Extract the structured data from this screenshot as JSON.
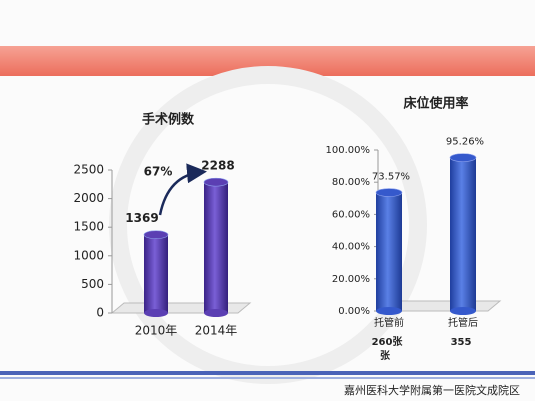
{
  "chart_data": [
    {
      "type": "bar",
      "title": "手术例数",
      "categories": [
        "2010年",
        "2014年"
      ],
      "values": [
        1369,
        2288
      ],
      "value_labels": [
        "1369",
        "2288"
      ],
      "color": "#5b3fb3",
      "ylim": [
        0,
        2500
      ],
      "yticks": [
        0,
        500,
        1000,
        1500,
        2000,
        2500
      ],
      "annotations": [
        "67%"
      ]
    },
    {
      "type": "bar",
      "title": "床位使用率",
      "categories": [
        "托管前",
        "托管后"
      ],
      "values": [
        73.57,
        95.26
      ],
      "value_labels": [
        "73.57%",
        "95.26%"
      ],
      "color": "#3559cc",
      "ylim": [
        0,
        100
      ],
      "yticks": [
        {
          "value": 0,
          "label": "0.00%"
        },
        {
          "value": 20,
          "label": "20.00%"
        },
        {
          "value": 40,
          "label": "40.00%"
        },
        {
          "value": 60,
          "label": "60.00%"
        },
        {
          "value": 80,
          "label": "80.00%"
        },
        {
          "value": 100,
          "label": "100.00%"
        }
      ],
      "sublabels": [
        "260张",
        "355"
      ],
      "annotations": [
        "张"
      ]
    }
  ],
  "footer": "嘉州医科大学附属第一医院文成院区"
}
